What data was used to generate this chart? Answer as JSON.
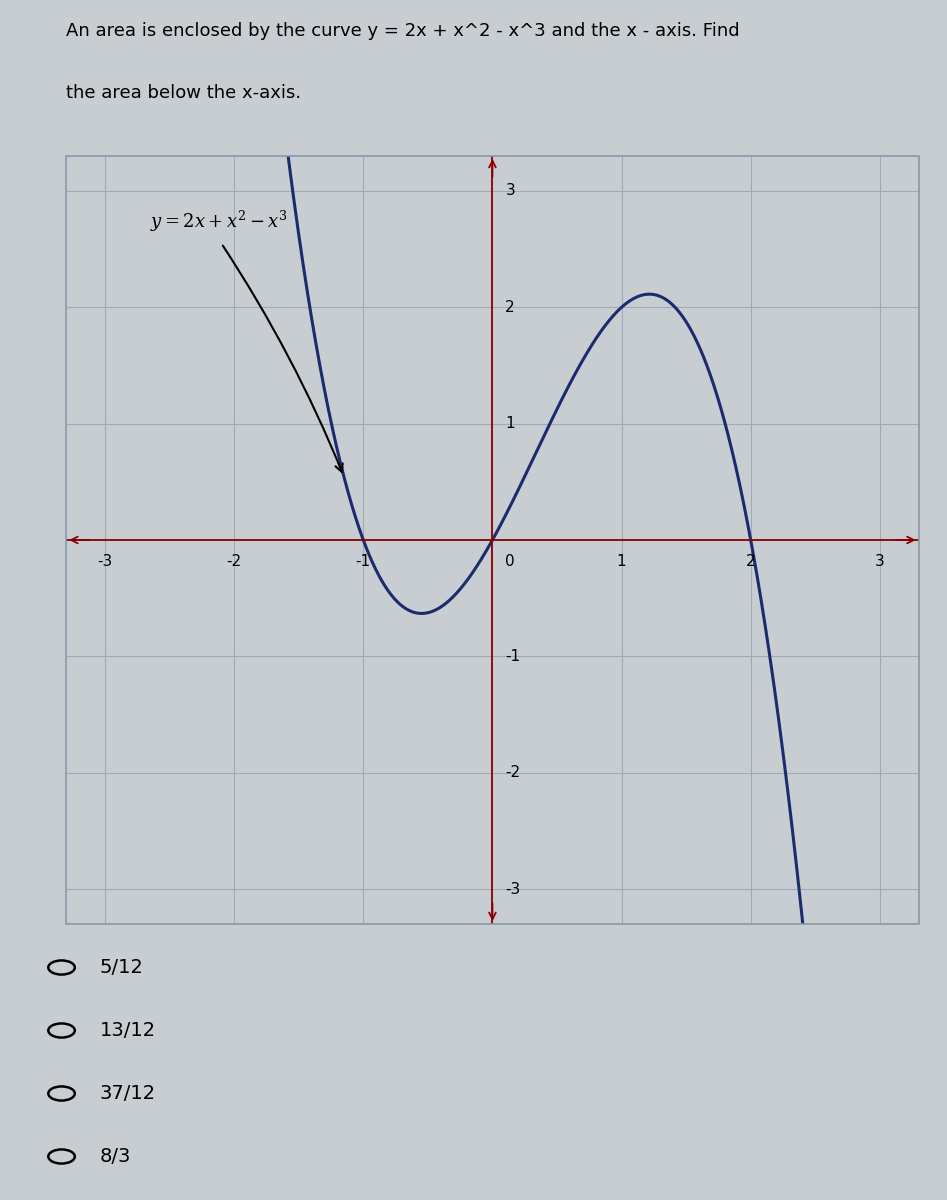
{
  "title_line1": "An area is enclosed by the curve y = 2x + x^2 - x^3 and the x - axis. Find",
  "title_line2": "the area below the x-axis.",
  "equation_label": "y = 2x + x² − x³",
  "xlim": [
    -3.3,
    3.3
  ],
  "ylim": [
    -3.3,
    3.3
  ],
  "x_ticks": [
    -3,
    -2,
    -1,
    1,
    2,
    3
  ],
  "y_ticks": [
    -3,
    -2,
    -1,
    1,
    2,
    3
  ],
  "curve_color": "#1c2b6e",
  "axis_color": "#8b0000",
  "grid_color": "#9aabbb",
  "background_color": "#d4d8dc",
  "border_color": "#8899aa",
  "choices": [
    "5/12",
    "13/12",
    "37/12",
    "8/3"
  ],
  "fig_width": 9.47,
  "fig_height": 12.0,
  "title_fontsize": 13,
  "tick_fontsize": 11,
  "eq_fontsize": 13,
  "choice_fontsize": 14
}
